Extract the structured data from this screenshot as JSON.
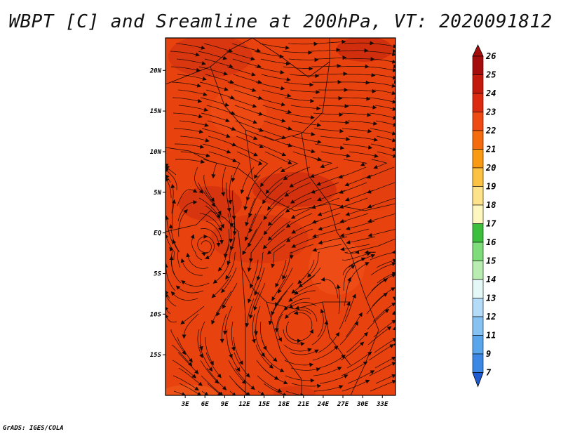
{
  "title": "WBPT [C] and Sreamline at 200hPa, VT: 2020091812",
  "credit": "GrADS: IGES/COLA",
  "map": {
    "lat_range": [
      -20,
      24
    ],
    "lon_range": [
      0,
      35
    ],
    "lat_ticks": [
      {
        "value": 20,
        "label": "20N"
      },
      {
        "value": 15,
        "label": "15N"
      },
      {
        "value": 10,
        "label": "10N"
      },
      {
        "value": 5,
        "label": "5N"
      },
      {
        "value": 0,
        "label": "EQ"
      },
      {
        "value": -5,
        "label": "5S"
      },
      {
        "value": -10,
        "label": "10S"
      },
      {
        "value": -15,
        "label": "15S"
      }
    ],
    "lon_ticks": [
      {
        "value": 3,
        "label": "3E"
      },
      {
        "value": 6,
        "label": "6E"
      },
      {
        "value": 9,
        "label": "9E"
      },
      {
        "value": 12,
        "label": "12E"
      },
      {
        "value": 15,
        "label": "15E"
      },
      {
        "value": 18,
        "label": "18E"
      },
      {
        "value": 21,
        "label": "21E"
      },
      {
        "value": 24,
        "label": "24E"
      },
      {
        "value": 27,
        "label": "27E"
      },
      {
        "value": 30,
        "label": "30E"
      },
      {
        "value": 33,
        "label": "33E"
      }
    ],
    "base_fill_color": "#e8420e"
  },
  "colorbar": {
    "levels": [
      {
        "label": "26",
        "color": "#a50d0d"
      },
      {
        "label": "25",
        "color": "#c41a0e"
      },
      {
        "label": "24",
        "color": "#dc2a10"
      },
      {
        "label": "23",
        "color": "#ee4a11"
      },
      {
        "label": "22",
        "color": "#f56c0f"
      },
      {
        "label": "21",
        "color": "#fa9a12"
      },
      {
        "label": "20",
        "color": "#fcc244"
      },
      {
        "label": "19",
        "color": "#fee38a"
      },
      {
        "label": "18",
        "color": "#fef8c0"
      },
      {
        "label": "17",
        "color": "#3cbf3c"
      },
      {
        "label": "16",
        "color": "#7edc7a"
      },
      {
        "label": "15",
        "color": "#b8ecb0"
      },
      {
        "label": "14",
        "color": "#e4f8f8"
      },
      {
        "label": "13",
        "color": "#b4dcf8"
      },
      {
        "label": "12",
        "color": "#86c2f2"
      },
      {
        "label": "11",
        "color": "#5aa6ec"
      },
      {
        "label": "9",
        "color": "#3c88e4"
      },
      {
        "label": "7",
        "color": "#2468d8"
      }
    ],
    "top_arrow_color": "#a50d0d",
    "bottom_arrow_color": "#1e5ad0"
  }
}
